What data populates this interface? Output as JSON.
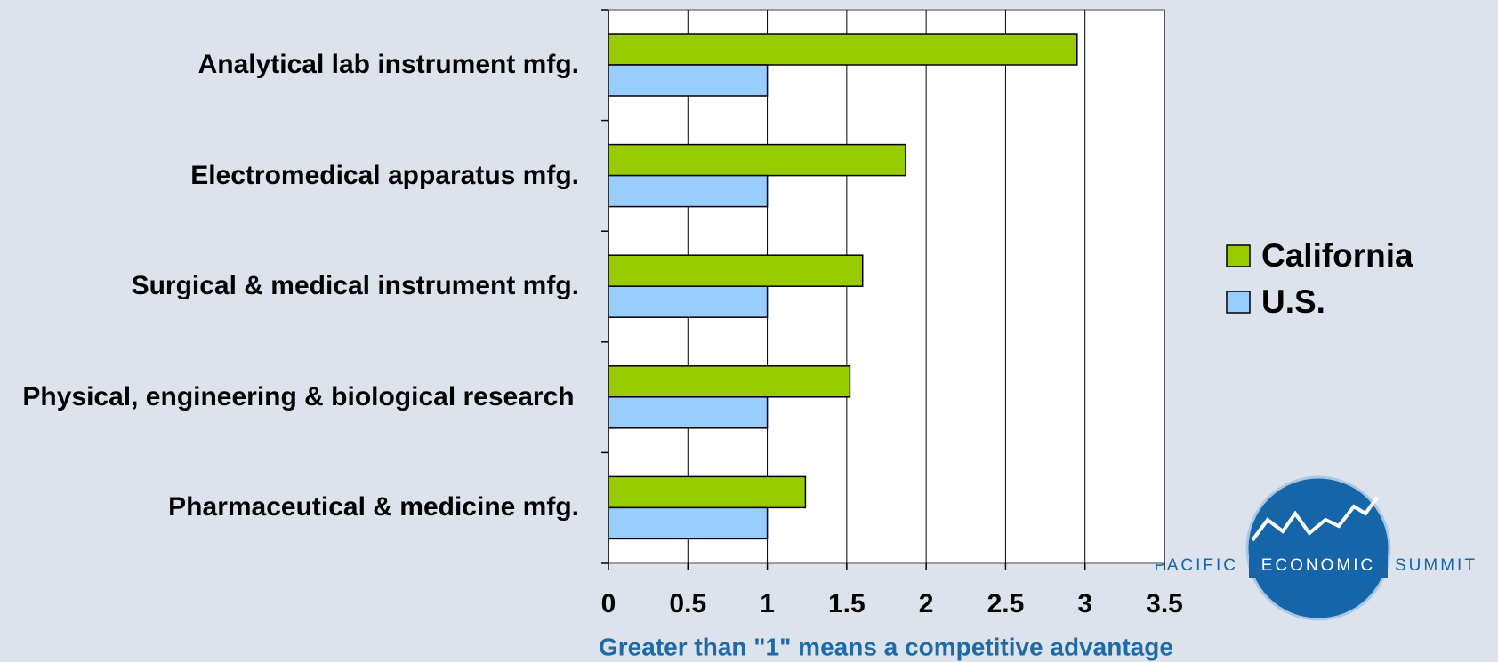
{
  "chart_data": {
    "type": "bar",
    "orientation": "horizontal",
    "categories": [
      "Analytical lab instrument mfg.",
      "Electromedical apparatus mfg.",
      "Surgical & medical instrument mfg.",
      "Physical, engineering & biological research",
      "Pharmaceutical & medicine mfg."
    ],
    "series": [
      {
        "name": "California",
        "color": "#99cc00",
        "values": [
          2.95,
          1.87,
          1.6,
          1.52,
          1.24
        ]
      },
      {
        "name": "U.S.",
        "color": "#99ccff",
        "values": [
          1,
          1,
          1,
          1,
          1
        ]
      }
    ],
    "xlim": [
      0,
      3.5
    ],
    "xticks": [
      0,
      0.5,
      1,
      1.5,
      2,
      2.5,
      3,
      3.5
    ],
    "grid": true,
    "legend": "right",
    "annotation": "Greater than \"1\" means a competitive advantage"
  },
  "logo": {
    "left": "PACIFIC",
    "center": "ECONOMIC",
    "right": "SUMMIT"
  }
}
